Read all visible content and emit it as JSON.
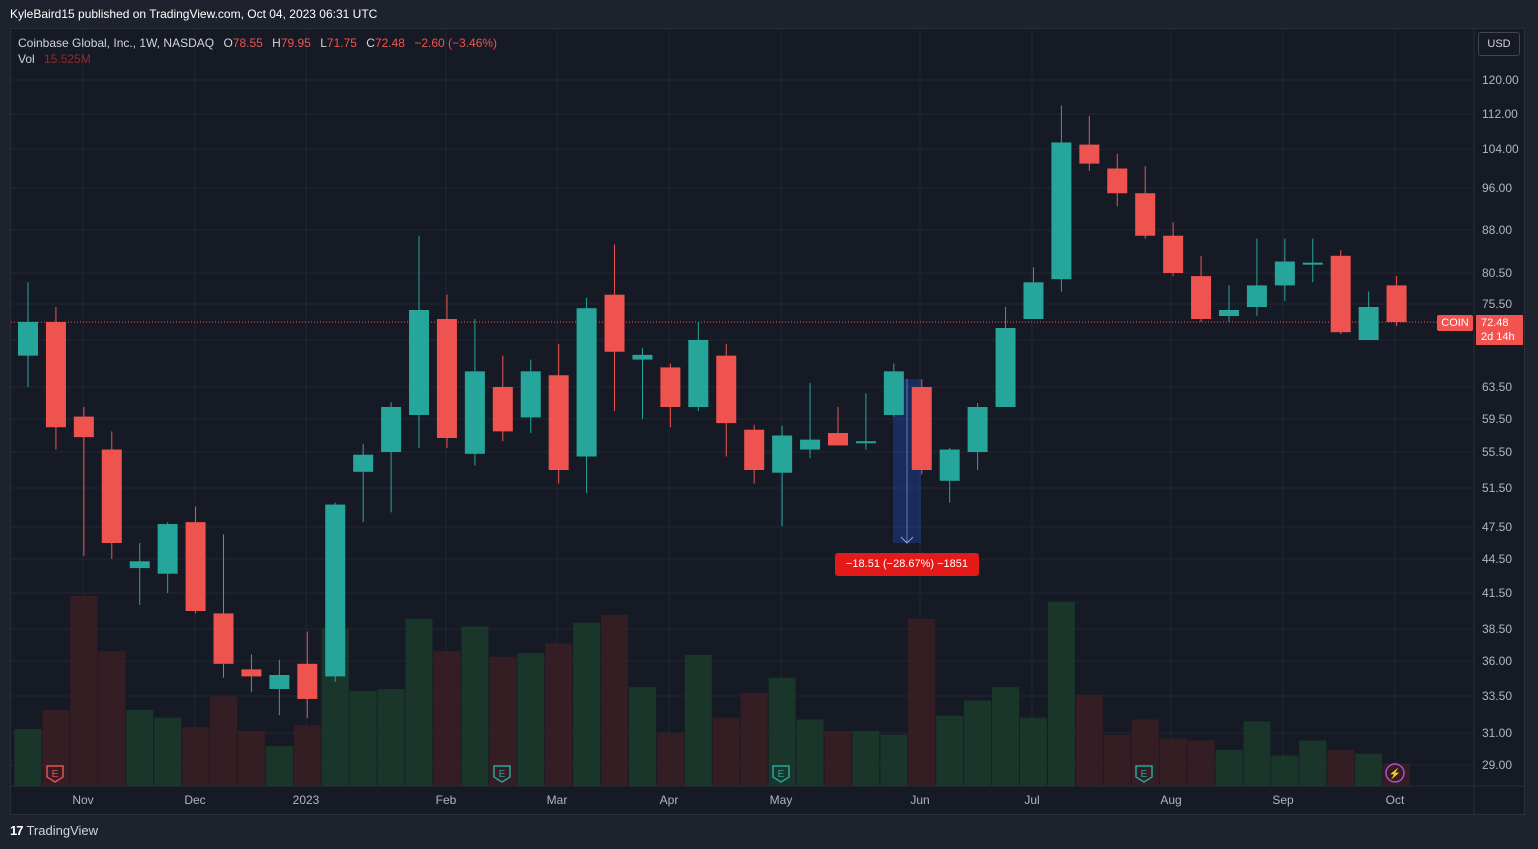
{
  "header": {
    "published_by": "KyleBaird15 published on TradingView.com, Oct 04, 2023 06:31 UTC"
  },
  "legend": {
    "symbol": "Coinbase Global, Inc., 1W, NASDAQ",
    "open_label": "O",
    "open": "78.55",
    "high_label": "H",
    "high": "79.95",
    "low_label": "L",
    "low": "71.75",
    "close_label": "C",
    "close": "72.48",
    "change": "−2.60 (−3.46%)",
    "vol_label": "Vol",
    "vol_value": "15.525M"
  },
  "currency": "USD",
  "ticker_tag": "COIN",
  "last_price": "72.48",
  "countdown": "2d 14h",
  "measure_label": "−18.51 (−28.67%) −1851",
  "footer": {
    "brand": "TradingView"
  },
  "colors": {
    "up": "#26a69a",
    "down": "#ef5350",
    "background": "#161a25",
    "grid": "#232632"
  },
  "chart_data": {
    "type": "candlestick",
    "interval": "1W",
    "y_ticks": [
      "120.00",
      "112.00",
      "104.00",
      "96.00",
      "88.00",
      "80.50",
      "75.50",
      "69.50",
      "63.50",
      "59.50",
      "55.50",
      "51.50",
      "47.50",
      "44.50",
      "41.50",
      "38.50",
      "36.00",
      "33.50",
      "31.00",
      "29.00"
    ],
    "x_ticks": [
      "Nov",
      "Dec",
      "2023",
      "Feb",
      "Mar",
      "Apr",
      "May",
      "Jun",
      "Jul",
      "Aug",
      "Sep",
      "Oct"
    ],
    "event_markers": [
      {
        "label": "E",
        "type": "earnings-red"
      },
      {
        "label": "E",
        "type": "earnings"
      },
      {
        "label": "E",
        "type": "earnings"
      },
      {
        "label": "E",
        "type": "earnings"
      },
      {
        "label": "⚡",
        "type": "split-dividend"
      }
    ],
    "candles": [
      {
        "o": 67.5,
        "h": 79.0,
        "l": 63.5,
        "c": 72.5
      },
      {
        "o": 72.5,
        "h": 75.0,
        "l": 55.8,
        "c": 58.5
      },
      {
        "o": 59.8,
        "h": 61.0,
        "l": 44.8,
        "c": 57.3
      },
      {
        "o": 55.8,
        "h": 58.0,
        "l": 44.5,
        "c": 46.0
      },
      {
        "o": 43.7,
        "h": 46.0,
        "l": 40.5,
        "c": 44.3
      },
      {
        "o": 43.2,
        "h": 48.0,
        "l": 41.5,
        "c": 47.8
      },
      {
        "o": 48.0,
        "h": 49.6,
        "l": 39.8,
        "c": 40.0
      },
      {
        "o": 39.8,
        "h": 46.8,
        "l": 34.8,
        "c": 35.8
      },
      {
        "o": 35.4,
        "h": 36.5,
        "l": 33.8,
        "c": 34.9
      },
      {
        "o": 34.0,
        "h": 36.1,
        "l": 32.2,
        "c": 35.0
      },
      {
        "o": 35.8,
        "h": 38.3,
        "l": 32.0,
        "c": 33.3
      },
      {
        "o": 34.9,
        "h": 50.0,
        "l": 34.5,
        "c": 49.8
      },
      {
        "o": 53.3,
        "h": 56.5,
        "l": 48.0,
        "c": 55.2
      },
      {
        "o": 55.5,
        "h": 61.6,
        "l": 49.0,
        "c": 61.0
      },
      {
        "o": 60.0,
        "h": 87.0,
        "l": 56.0,
        "c": 74.5
      },
      {
        "o": 73.0,
        "h": 77.0,
        "l": 56.0,
        "c": 57.2
      },
      {
        "o": 55.3,
        "h": 73.0,
        "l": 54.0,
        "c": 65.5
      },
      {
        "o": 63.5,
        "h": 67.5,
        "l": 56.8,
        "c": 58.0
      },
      {
        "o": 59.7,
        "h": 67.0,
        "l": 57.8,
        "c": 65.5
      },
      {
        "o": 65.0,
        "h": 69.0,
        "l": 52.0,
        "c": 53.5
      },
      {
        "o": 55.0,
        "h": 76.5,
        "l": 51.0,
        "c": 74.8
      },
      {
        "o": 77.0,
        "h": 85.5,
        "l": 60.5,
        "c": 68.0
      },
      {
        "o": 67.0,
        "h": 68.5,
        "l": 59.5,
        "c": 67.6
      },
      {
        "o": 66.0,
        "h": 66.5,
        "l": 58.5,
        "c": 61.0
      },
      {
        "o": 61.0,
        "h": 72.5,
        "l": 60.5,
        "c": 69.5
      },
      {
        "o": 67.5,
        "h": 69.0,
        "l": 55.0,
        "c": 59.0
      },
      {
        "o": 58.2,
        "h": 58.8,
        "l": 52.0,
        "c": 53.5
      },
      {
        "o": 53.2,
        "h": 58.7,
        "l": 47.6,
        "c": 57.5
      },
      {
        "o": 55.8,
        "h": 64.0,
        "l": 54.8,
        "c": 57.0
      },
      {
        "o": 57.8,
        "h": 61.0,
        "l": 56.5,
        "c": 56.3
      },
      {
        "o": 56.7,
        "h": 62.7,
        "l": 55.8,
        "c": 56.8
      },
      {
        "o": 60.0,
        "h": 66.5,
        "l": 59.8,
        "c": 65.5
      },
      {
        "o": 63.5,
        "h": 64.5,
        "l": 53.0,
        "c": 53.5
      },
      {
        "o": 52.3,
        "h": 56.0,
        "l": 50.0,
        "c": 55.8
      },
      {
        "o": 55.5,
        "h": 61.5,
        "l": 53.5,
        "c": 61.0
      },
      {
        "o": 61.0,
        "h": 75.0,
        "l": 61.0,
        "c": 71.5
      },
      {
        "o": 73.0,
        "h": 81.5,
        "l": 73.0,
        "c": 79.0
      },
      {
        "o": 79.5,
        "h": 114.0,
        "l": 77.5,
        "c": 105.5
      },
      {
        "o": 105.0,
        "h": 111.5,
        "l": 99.5,
        "c": 101.0
      },
      {
        "o": 100.0,
        "h": 103.0,
        "l": 92.5,
        "c": 95.0
      },
      {
        "o": 95.0,
        "h": 100.5,
        "l": 86.5,
        "c": 87.0
      },
      {
        "o": 87.0,
        "h": 89.5,
        "l": 80.0,
        "c": 80.5
      },
      {
        "o": 80.0,
        "h": 83.5,
        "l": 72.5,
        "c": 73.0
      },
      {
        "o": 73.5,
        "h": 78.5,
        "l": 72.5,
        "c": 74.5
      },
      {
        "o": 75.0,
        "h": 86.5,
        "l": 73.5,
        "c": 78.5
      },
      {
        "o": 78.5,
        "h": 86.5,
        "l": 76.0,
        "c": 82.5
      },
      {
        "o": 82.0,
        "h": 86.5,
        "l": 79.0,
        "c": 82.3
      },
      {
        "o": 83.5,
        "h": 84.5,
        "l": 70.5,
        "c": 70.8
      },
      {
        "o": 69.5,
        "h": 77.5,
        "l": 69.5,
        "c": 75.0
      },
      {
        "o": 78.5,
        "h": 80.0,
        "l": 71.8,
        "c": 72.5
      }
    ],
    "volume_relative": [
      0.3,
      0.4,
      1.0,
      0.71,
      0.4,
      0.36,
      0.31,
      0.47,
      0.29,
      0.21,
      0.32,
      0.83,
      0.5,
      0.51,
      0.88,
      0.71,
      0.84,
      0.68,
      0.7,
      0.75,
      0.86,
      0.9,
      0.52,
      0.28,
      0.69,
      0.36,
      0.49,
      0.57,
      0.35,
      0.29,
      0.29,
      0.27,
      0.88,
      0.37,
      0.45,
      0.52,
      0.36,
      0.97,
      0.48,
      0.27,
      0.35,
      0.25,
      0.24,
      0.19,
      0.34,
      0.16,
      0.24,
      0.19,
      0.17,
      0.12
    ]
  }
}
